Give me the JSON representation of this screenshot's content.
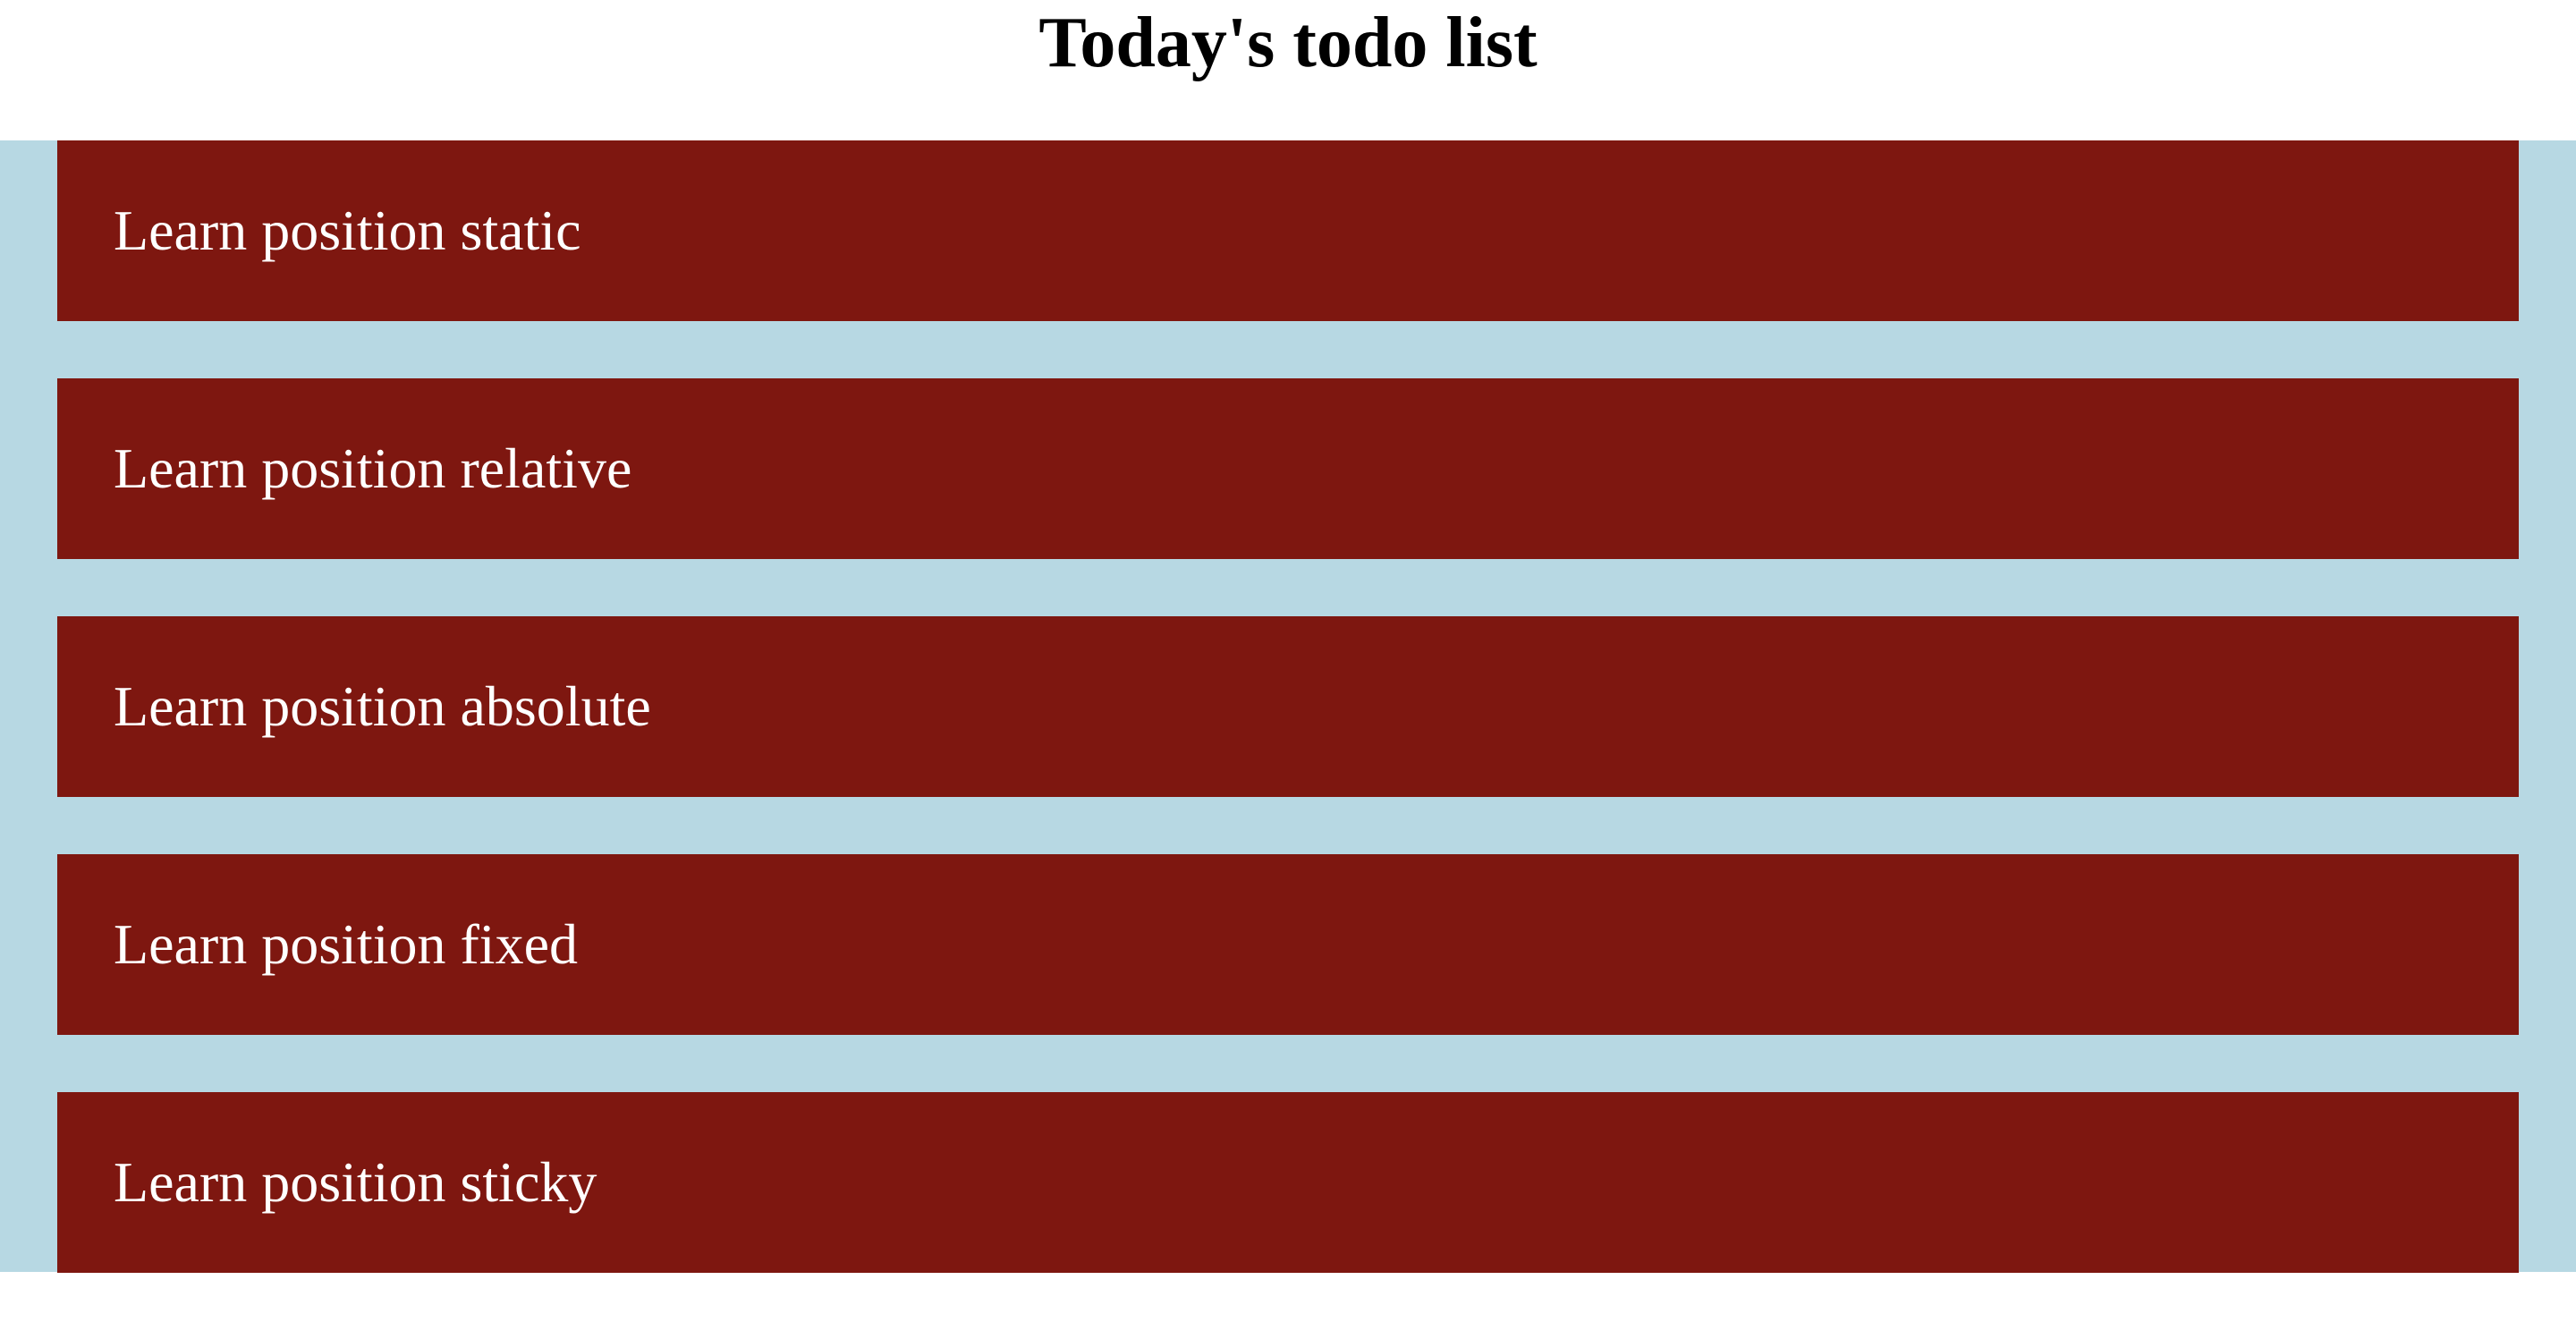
{
  "page": {
    "title": "Today's todo list"
  },
  "todos": [
    {
      "label": "Learn position static"
    },
    {
      "label": "Learn position relative"
    },
    {
      "label": "Learn position absolute"
    },
    {
      "label": "Learn position fixed"
    },
    {
      "label": "Learn position sticky"
    }
  ],
  "colors": {
    "container_background": "#b7d8e3",
    "item_background": "#7e1710",
    "item_text": "#ffffff",
    "title_text": "#000000"
  }
}
